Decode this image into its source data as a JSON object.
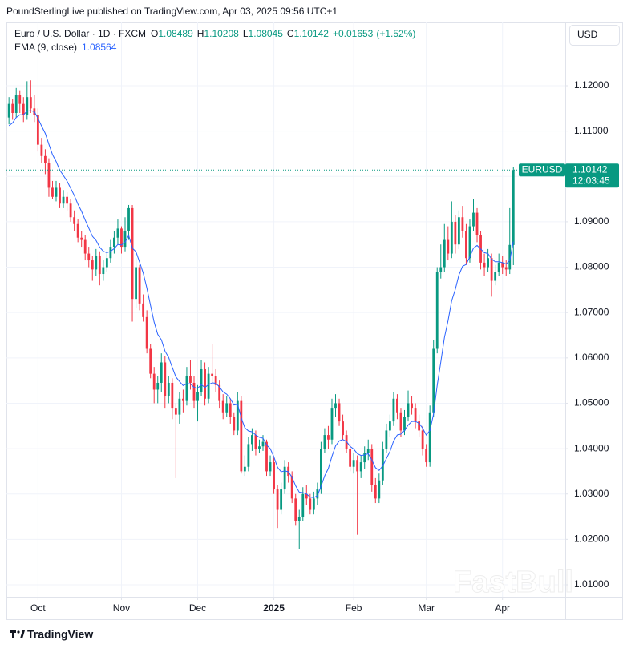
{
  "header": "PoundSterlingLive published on TradingView.com, Apr 03, 2025 09:56 UTC+1",
  "footer": "TradingView",
  "watermark": "FastBull",
  "chart_data": {
    "type": "candlestick",
    "title": "Euro / U.S. Dollar · 1D · FXCM",
    "ohlc_labels": [
      "O",
      "H",
      "L",
      "C"
    ],
    "change": {
      "value": 0.01653,
      "label": "+0.01653"
    },
    "change_pct": {
      "value": 1.52,
      "label": "(+1.52%)"
    },
    "currency": "USD",
    "symbol": "EURUSD",
    "countdown": "12:03:45",
    "up_color": "#089981",
    "down_color": "#f23645",
    "grid": true,
    "xlim": [
      -0.7,
      153.3
    ],
    "xticks": [
      {
        "value": 8,
        "label": "Oct"
      },
      {
        "value": 31,
        "label": "Nov"
      },
      {
        "value": 52,
        "label": "Dec"
      },
      {
        "value": 73,
        "label": "2025"
      },
      {
        "value": 95,
        "label": "Feb"
      },
      {
        "value": 115,
        "label": "Mar"
      },
      {
        "value": 136,
        "label": "Apr"
      }
    ],
    "ylim": [
      1.00735,
      1.13395
    ],
    "yticks": [
      {
        "value": 1.01,
        "label": "1.01000"
      },
      {
        "value": 1.02,
        "label": "1.02000"
      },
      {
        "value": 1.03,
        "label": "1.03000"
      },
      {
        "value": 1.04,
        "label": "1.04000"
      },
      {
        "value": 1.05,
        "label": "1.05000"
      },
      {
        "value": 1.06,
        "label": "1.06000"
      },
      {
        "value": 1.07,
        "label": "1.07000"
      },
      {
        "value": 1.08,
        "label": "1.08000"
      },
      {
        "value": 1.09,
        "label": "1.09000"
      },
      {
        "value": 1.1,
        "label": "1.10000"
      },
      {
        "value": 1.11,
        "label": "1.11000"
      },
      {
        "value": 1.12,
        "label": "1.12000"
      }
    ],
    "candles": [
      [
        1.113,
        1.1175,
        1.1115,
        1.116
      ],
      [
        1.116,
        1.117,
        1.1125,
        1.114
      ],
      [
        1.114,
        1.1195,
        1.113,
        1.118
      ],
      [
        1.118,
        1.119,
        1.114,
        1.116
      ],
      [
        1.116,
        1.1175,
        1.112,
        1.1135
      ],
      [
        1.1135,
        1.121,
        1.1125,
        1.1175
      ],
      [
        1.1175,
        1.1212,
        1.114,
        1.115
      ],
      [
        1.115,
        1.118,
        1.112,
        1.1135
      ],
      [
        1.1135,
        1.115,
        1.1055,
        1.107
      ],
      [
        1.107,
        1.1085,
        1.103,
        1.1045
      ],
      [
        1.1045,
        1.106,
        1.1005,
        1.103
      ],
      [
        1.103,
        1.104,
        1.0955,
        1.0975
      ],
      [
        1.0975,
        1.099,
        1.095,
        1.0955
      ],
      [
        1.0955,
        1.099,
        1.0945,
        1.0975
      ],
      [
        1.0975,
        1.0985,
        1.093,
        1.094
      ],
      [
        1.094,
        1.097,
        1.093,
        1.0955
      ],
      [
        1.0955,
        1.0965,
        1.0925,
        1.094
      ],
      [
        1.094,
        1.095,
        1.09,
        1.091
      ],
      [
        1.091,
        1.0925,
        1.088,
        1.0895
      ],
      [
        1.0895,
        1.0905,
        1.0855,
        1.0865
      ],
      [
        1.0865,
        1.088,
        1.0845,
        1.086
      ],
      [
        1.086,
        1.087,
        1.0815,
        1.083
      ],
      [
        1.083,
        1.0845,
        1.08,
        1.0815
      ],
      [
        1.0815,
        1.0825,
        1.077,
        1.0795
      ],
      [
        1.0795,
        1.084,
        1.078,
        1.0825
      ],
      [
        1.0825,
        1.0835,
        1.076,
        1.0785
      ],
      [
        1.0785,
        1.0815,
        1.077,
        1.08
      ],
      [
        1.08,
        1.0835,
        1.079,
        1.082
      ],
      [
        1.082,
        1.086,
        1.081,
        1.0845
      ],
      [
        1.0845,
        1.088,
        1.083,
        1.0865
      ],
      [
        1.0865,
        1.0905,
        1.085,
        1.0885
      ],
      [
        1.0885,
        1.089,
        1.083,
        1.0845
      ],
      [
        1.0845,
        1.091,
        1.0835,
        1.088
      ],
      [
        1.088,
        1.0937,
        1.086,
        1.093
      ],
      [
        1.093,
        1.0937,
        1.068,
        1.073
      ],
      [
        1.073,
        1.082,
        1.071,
        1.08
      ],
      [
        1.08,
        1.0805,
        1.0705,
        1.072
      ],
      [
        1.072,
        1.074,
        1.068,
        1.069
      ],
      [
        1.069,
        1.0705,
        1.061,
        1.062
      ],
      [
        1.062,
        1.063,
        1.0555,
        1.0565
      ],
      [
        1.0565,
        1.058,
        1.05,
        1.053
      ],
      [
        1.053,
        1.056,
        1.05,
        1.0545
      ],
      [
        1.0545,
        1.061,
        1.0525,
        1.059
      ],
      [
        1.059,
        1.0605,
        1.049,
        1.0515
      ],
      [
        1.0515,
        1.056,
        1.05,
        1.0545
      ],
      [
        1.0545,
        1.0555,
        1.0465,
        1.049
      ],
      [
        1.049,
        1.05,
        1.0335,
        1.0475
      ],
      [
        1.0475,
        1.0525,
        1.0455,
        1.051
      ],
      [
        1.051,
        1.053,
        1.048,
        1.0505
      ],
      [
        1.0505,
        1.058,
        1.0495,
        1.056
      ],
      [
        1.056,
        1.0595,
        1.053,
        1.0545
      ],
      [
        1.0545,
        1.056,
        1.049,
        1.0505
      ],
      [
        1.0505,
        1.054,
        1.046,
        1.0525
      ],
      [
        1.0525,
        1.0595,
        1.0515,
        1.0575
      ],
      [
        1.0575,
        1.059,
        1.0495,
        1.051
      ],
      [
        1.051,
        1.058,
        1.05,
        1.0565
      ],
      [
        1.0565,
        1.063,
        1.0545,
        1.056
      ],
      [
        1.056,
        1.0575,
        1.0525,
        1.054
      ],
      [
        1.054,
        1.055,
        1.049,
        1.0505
      ],
      [
        1.0505,
        1.052,
        1.0465,
        1.048
      ],
      [
        1.048,
        1.0515,
        1.047,
        1.05
      ],
      [
        1.05,
        1.051,
        1.0455,
        1.047
      ],
      [
        1.047,
        1.048,
        1.043,
        1.044
      ],
      [
        1.044,
        1.0525,
        1.043,
        1.0505
      ],
      [
        1.0505,
        1.0515,
        1.0345,
        1.035
      ],
      [
        1.035,
        1.0385,
        1.034,
        1.036
      ],
      [
        1.036,
        1.0425,
        1.035,
        1.041
      ],
      [
        1.041,
        1.0445,
        1.0395,
        1.043
      ],
      [
        1.043,
        1.044,
        1.0385,
        1.04
      ],
      [
        1.04,
        1.042,
        1.039,
        1.0405
      ],
      [
        1.0405,
        1.043,
        1.0395,
        1.0415
      ],
      [
        1.0415,
        1.042,
        1.034,
        1.035
      ],
      [
        1.035,
        1.0385,
        1.034,
        1.037
      ],
      [
        1.037,
        1.038,
        1.03,
        1.031
      ],
      [
        1.031,
        1.032,
        1.0225,
        1.0265
      ],
      [
        1.0265,
        1.0325,
        1.0255,
        1.031
      ],
      [
        1.031,
        1.0375,
        1.03,
        1.036
      ],
      [
        1.036,
        1.037,
        1.0325,
        1.034
      ],
      [
        1.034,
        1.035,
        1.028,
        1.029
      ],
      [
        1.029,
        1.03,
        1.023,
        1.024
      ],
      [
        1.024,
        1.0265,
        1.0178,
        1.025
      ],
      [
        1.025,
        1.0315,
        1.024,
        1.03
      ],
      [
        1.03,
        1.032,
        1.0275,
        1.029
      ],
      [
        1.029,
        1.03,
        1.0255,
        1.0265
      ],
      [
        1.0265,
        1.0305,
        1.0255,
        1.029
      ],
      [
        1.029,
        1.0325,
        1.0275,
        1.031
      ],
      [
        1.031,
        1.0415,
        1.03,
        1.04
      ],
      [
        1.04,
        1.0445,
        1.039,
        1.043
      ],
      [
        1.043,
        1.045,
        1.04,
        1.042
      ],
      [
        1.042,
        1.051,
        1.041,
        1.049
      ],
      [
        1.049,
        1.052,
        1.047,
        1.05
      ],
      [
        1.05,
        1.051,
        1.045,
        1.046
      ],
      [
        1.046,
        1.0475,
        1.042,
        1.043
      ],
      [
        1.043,
        1.044,
        1.039,
        1.04
      ],
      [
        1.04,
        1.041,
        1.035,
        1.036
      ],
      [
        1.036,
        1.039,
        1.0345,
        1.0375
      ],
      [
        1.0375,
        1.0385,
        1.021,
        1.035
      ],
      [
        1.035,
        1.0385,
        1.0335,
        1.037
      ],
      [
        1.037,
        1.0405,
        1.0355,
        1.039
      ],
      [
        1.039,
        1.042,
        1.0375,
        1.04
      ],
      [
        1.04,
        1.041,
        1.0305,
        1.032
      ],
      [
        1.032,
        1.0335,
        1.028,
        1.029
      ],
      [
        1.029,
        1.0345,
        1.028,
        1.033
      ],
      [
        1.033,
        1.0415,
        1.032,
        1.04
      ],
      [
        1.04,
        1.0455,
        1.039,
        1.044
      ],
      [
        1.044,
        1.0475,
        1.0425,
        1.046
      ],
      [
        1.046,
        1.0525,
        1.045,
        1.051
      ],
      [
        1.051,
        1.052,
        1.0465,
        1.048
      ],
      [
        1.048,
        1.049,
        1.0425,
        1.044
      ],
      [
        1.044,
        1.0485,
        1.043,
        1.047
      ],
      [
        1.047,
        1.0528,
        1.046,
        1.05
      ],
      [
        1.05,
        1.0515,
        1.0475,
        1.049
      ],
      [
        1.049,
        1.05,
        1.0445,
        1.046
      ],
      [
        1.046,
        1.0475,
        1.0425,
        1.044
      ],
      [
        1.044,
        1.045,
        1.0385,
        1.04
      ],
      [
        1.04,
        1.041,
        1.036,
        1.037
      ],
      [
        1.037,
        1.0495,
        1.036,
        1.048
      ],
      [
        1.048,
        1.064,
        1.047,
        1.062
      ],
      [
        1.062,
        1.08,
        1.061,
        1.079
      ],
      [
        1.079,
        1.085,
        1.0775,
        1.08
      ],
      [
        1.08,
        1.0895,
        1.079,
        1.086
      ],
      [
        1.086,
        1.089,
        1.0815,
        1.083
      ],
      [
        1.083,
        1.0945,
        1.082,
        1.09
      ],
      [
        1.09,
        1.0915,
        1.083,
        1.085
      ],
      [
        1.085,
        1.0925,
        1.084,
        1.091
      ],
      [
        1.091,
        1.0935,
        1.0865,
        1.088
      ],
      [
        1.088,
        1.0895,
        1.0805,
        1.082
      ],
      [
        1.082,
        1.0905,
        1.081,
        1.089
      ],
      [
        1.089,
        1.095,
        1.088,
        1.092
      ],
      [
        1.092,
        1.093,
        1.0855,
        1.087
      ],
      [
        1.087,
        1.088,
        1.0795,
        1.081
      ],
      [
        1.081,
        1.083,
        1.078,
        1.08
      ],
      [
        1.08,
        1.084,
        1.079,
        1.082
      ],
      [
        1.082,
        1.083,
        1.0735,
        1.077
      ],
      [
        1.077,
        1.0805,
        1.076,
        1.079
      ],
      [
        1.079,
        1.083,
        1.078,
        1.081
      ],
      [
        1.081,
        1.0825,
        1.0785,
        1.08
      ],
      [
        1.08,
        1.0815,
        1.078,
        1.0795
      ],
      [
        1.0795,
        1.093,
        1.0785,
        1.0849
      ],
      [
        1.08489,
        1.10208,
        1.08045,
        1.10142
      ]
    ],
    "indicator": {
      "name": "EMA (9, close)",
      "color": "#2962ff",
      "values": [
        1.1112,
        1.1118,
        1.113,
        1.1136,
        1.1136,
        1.1144,
        1.1145,
        1.1143,
        1.1128,
        1.1111,
        1.1095,
        1.1071,
        1.1048,
        1.1033,
        1.1014,
        1.1002,
        1.099,
        1.0974,
        1.0958,
        1.0939,
        1.0923,
        1.0904,
        1.0886,
        1.0868,
        1.0859,
        1.0844,
        1.0835,
        1.0832,
        1.0835,
        1.0841,
        1.085,
        1.0849,
        1.0855,
        1.087,
        1.0842,
        1.0834,
        1.0811,
        1.0787,
        1.0754,
        1.0716,
        1.0679,
        1.0652,
        1.064,
        1.0615,
        1.0601,
        1.0579,
        1.0558,
        1.0548,
        1.0539,
        1.0543,
        1.0543,
        1.0535,
        1.0533,
        1.0541,
        1.0535,
        1.0541,
        1.0545,
        1.0544,
        1.0536,
        1.0525,
        1.052,
        1.051,
        1.0496,
        1.0498,
        1.0468,
        1.0446,
        1.0439,
        1.0437,
        1.043,
        1.0425,
        1.0423,
        1.0408,
        1.04,
        1.0382,
        1.0359,
        1.0349,
        1.0351,
        1.0349,
        1.0337,
        1.0318,
        1.0304,
        1.0303,
        1.03,
        1.0293,
        1.0292,
        1.0296,
        1.0317,
        1.034,
        1.0356,
        1.0383,
        1.0406,
        1.0417,
        1.042,
        1.0416,
        1.0405,
        1.0399,
        1.0389,
        1.0385,
        1.0386,
        1.0389,
        1.0375,
        1.0358,
        1.0352,
        1.0362,
        1.0378,
        1.0394,
        1.0417,
        1.043,
        1.0432,
        1.044,
        1.0452,
        1.046,
        1.046,
        1.0456,
        1.0445,
        1.043,
        1.044,
        1.0476,
        1.0539,
        1.0591,
        1.0645,
        1.0682,
        1.0726,
        1.0751,
        1.0783,
        1.0802,
        1.0806,
        1.0823,
        1.0842,
        1.0848,
        1.084,
        1.0832,
        1.083,
        1.0818,
        1.0812,
        1.0812,
        1.081,
        1.0807,
        1.0815,
        1.08564
      ]
    }
  }
}
